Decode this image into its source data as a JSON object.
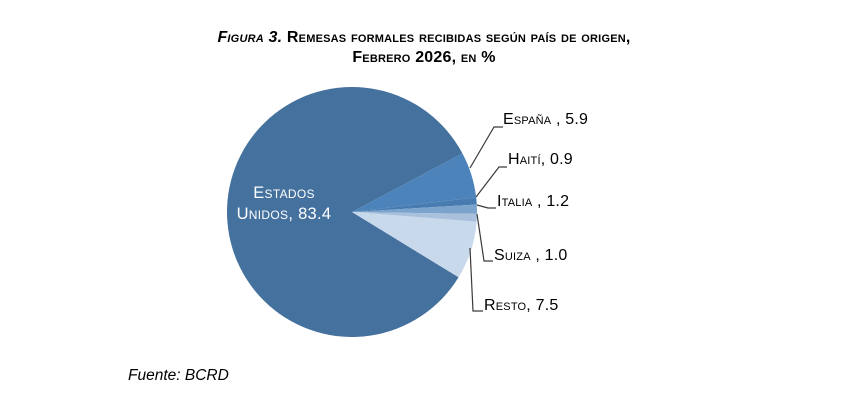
{
  "title": {
    "figure_label": "Figura 3.",
    "line1": "Remesas formales recibidas según país de origen,",
    "line2": "Febrero 2026, en %"
  },
  "chart_data": {
    "type": "pie",
    "title": "Figura 3. Remesas formales recibidas según país de origen, Febrero 2026, en %",
    "unit": "%",
    "start_angle_deg": -31.5,
    "legend_position": "none",
    "label_style": "callout-leader-lines",
    "slices": [
      {
        "id": "estados-unidos",
        "label": "Estados Unidos",
        "value": 83.4,
        "display": "Estados Unidos, 83.4",
        "color": "#44719E",
        "label_color": "#FFFFFF"
      },
      {
        "id": "espana",
        "label": "España",
        "value": 5.9,
        "display": "España , 5.9",
        "color": "#4C83BA",
        "label_color": "#000000"
      },
      {
        "id": "haiti",
        "label": "Haití",
        "value": 0.9,
        "display": "Haití, 0.9",
        "color": "#487CB0",
        "label_color": "#000000"
      },
      {
        "id": "italia",
        "label": "Italia",
        "value": 1.2,
        "display": "Italia , 1.2",
        "color": "#7BA3CC",
        "label_color": "#000000"
      },
      {
        "id": "suiza",
        "label": "Suiza",
        "value": 1.0,
        "display": "Suiza , 1.0",
        "color": "#A9C0DD",
        "label_color": "#000000"
      },
      {
        "id": "resto",
        "label": "Resto",
        "value": 7.5,
        "display": "Resto, 7.5",
        "color": "#C9D9EC",
        "label_color": "#000000"
      }
    ],
    "leader_line_color": "#3A3A3A"
  },
  "footer": {
    "source": "Fuente: BCRD"
  }
}
